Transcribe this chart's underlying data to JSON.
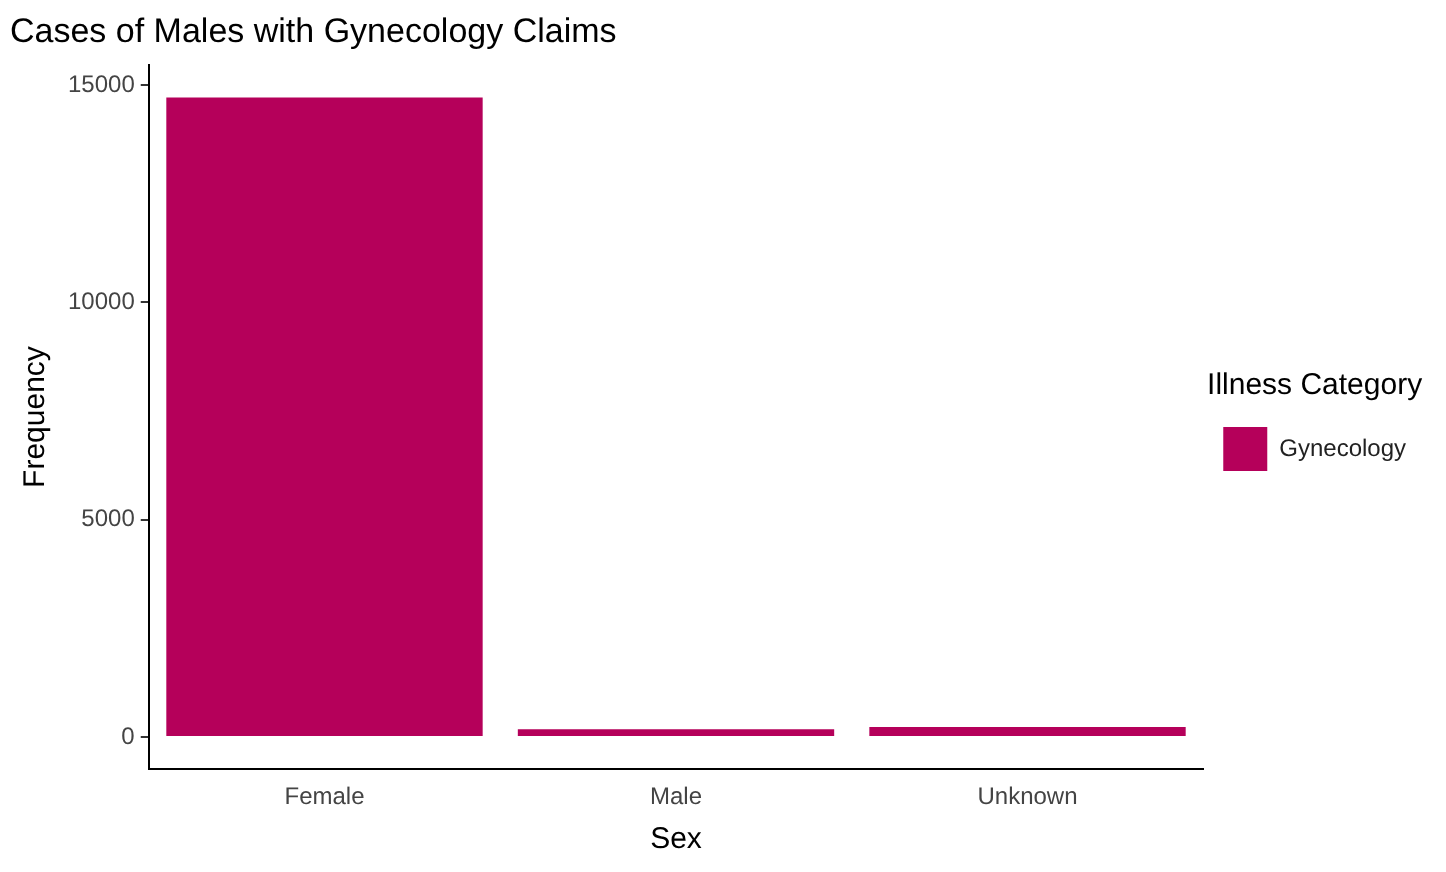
{
  "chart_data": {
    "type": "bar",
    "title": "Cases of Males with Gynecology Claims",
    "xlabel": "Sex",
    "ylabel": "Frequency",
    "legend_title": "Illness Category",
    "categories": [
      "Female",
      "Male",
      "Unknown"
    ],
    "series": [
      {
        "name": "Gynecology",
        "color": "#b5005a",
        "values": [
          14720,
          180,
          230
        ]
      }
    ],
    "ylim": [
      -740,
      15470
    ],
    "yticks": [
      0,
      5000,
      10000,
      15000
    ],
    "grid": false,
    "legend": "right"
  }
}
